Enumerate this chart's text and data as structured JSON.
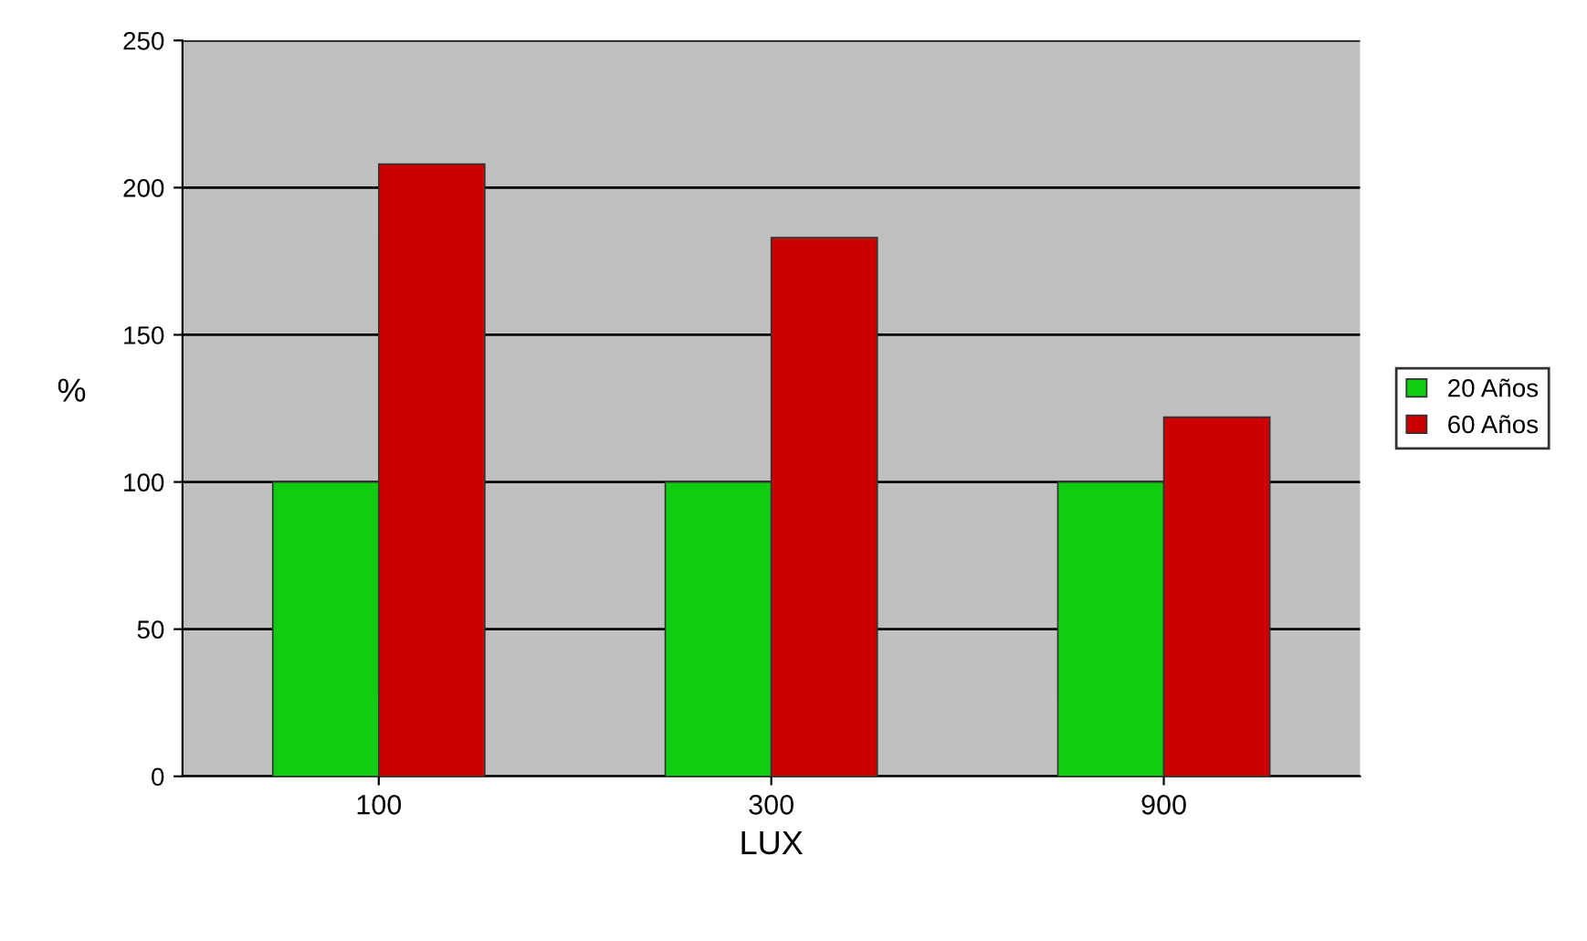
{
  "chart_data": {
    "type": "bar",
    "xlabel": "LUX",
    "ylabel": "%",
    "categories": [
      "100",
      "300",
      "900"
    ],
    "series": [
      {
        "name": "20 Años",
        "color": "#11cc11",
        "values": [
          100,
          100,
          100
        ]
      },
      {
        "name": "60 Años",
        "color": "#cc0000",
        "values": [
          208,
          183,
          122
        ]
      }
    ],
    "ylim": [
      0,
      250
    ],
    "yticks": [
      0,
      50,
      100,
      150,
      200,
      250
    ],
    "grid": "y",
    "legend": "right"
  }
}
